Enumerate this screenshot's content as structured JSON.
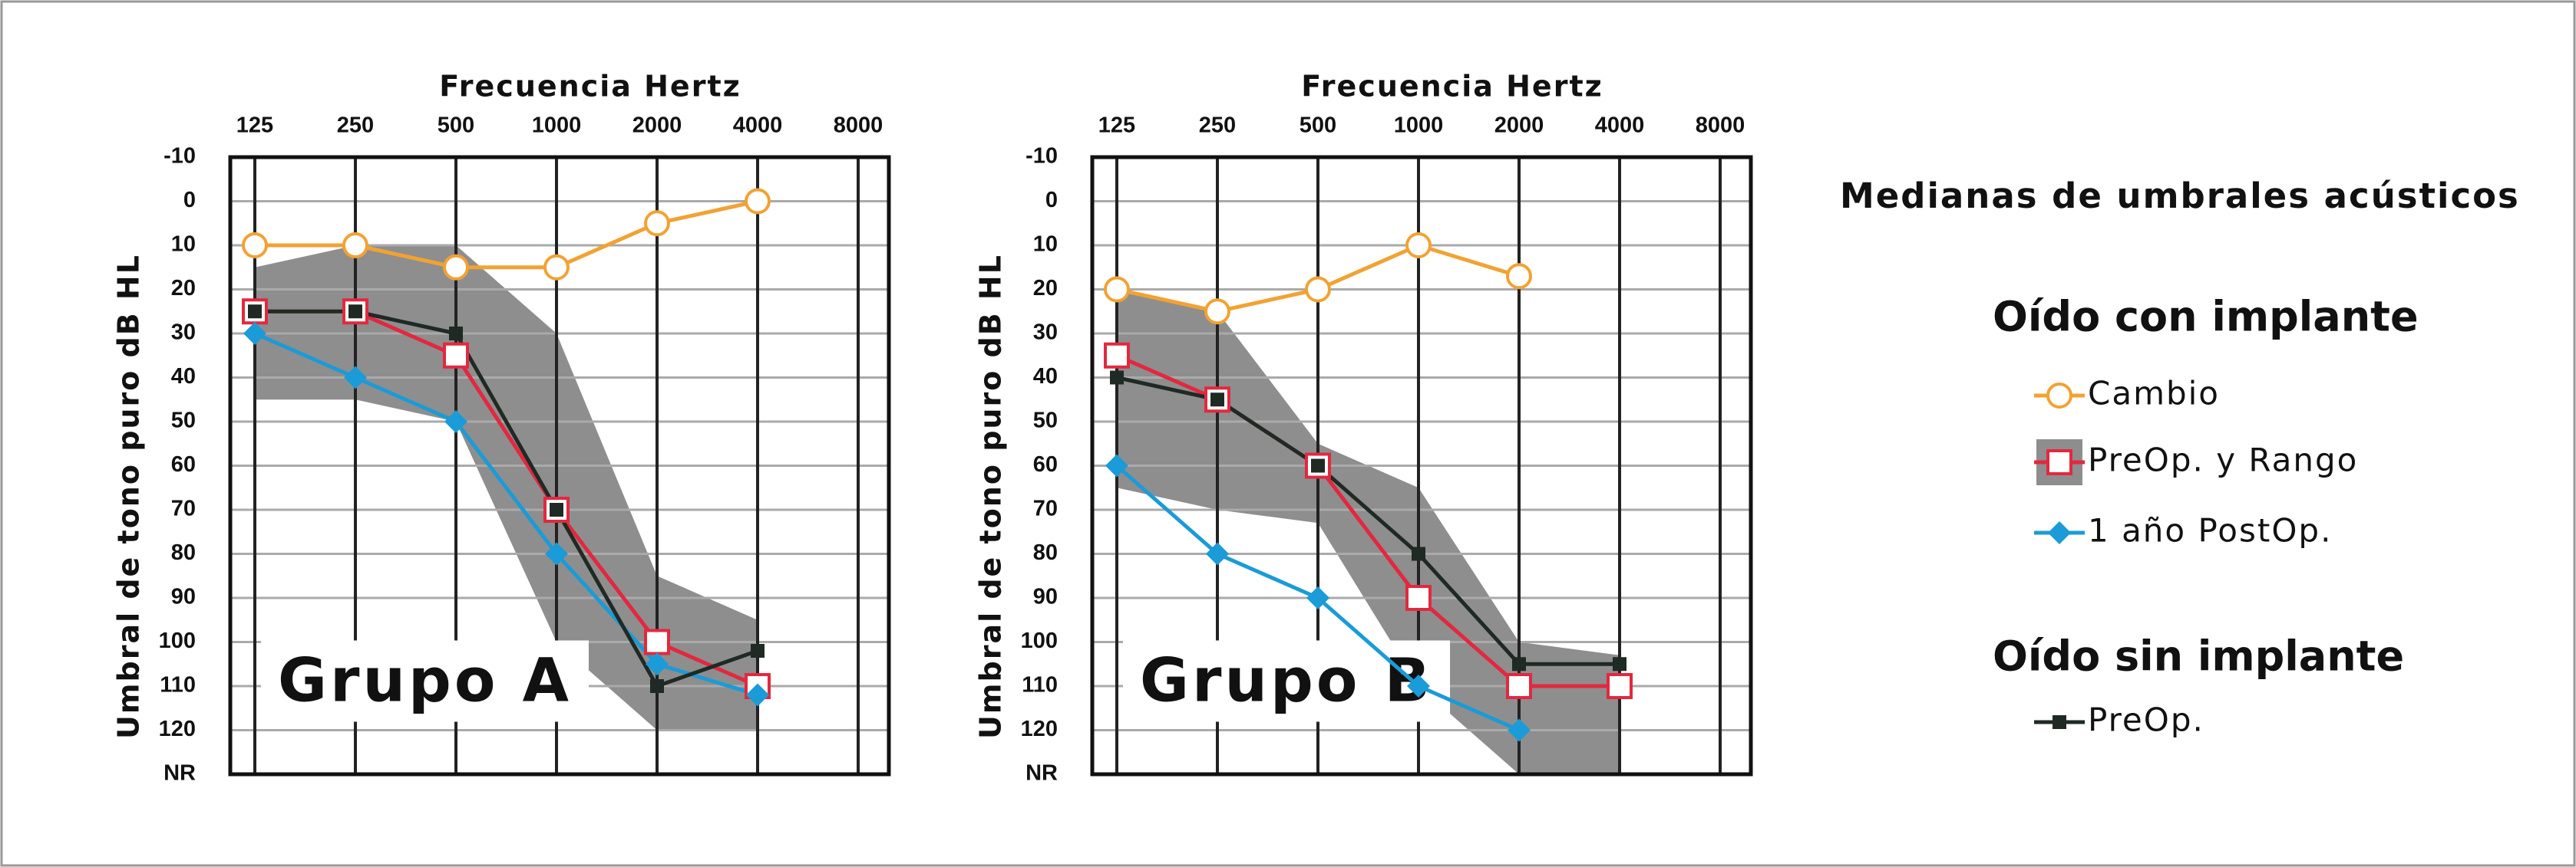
{
  "chart_data": [
    {
      "type": "line",
      "x_label": "Frecuencia Hertz",
      "y_label": "Umbral de tono puro dB HL",
      "annotation": "Grupo A",
      "categories": [
        "125",
        "250",
        "500",
        "1000",
        "2000",
        "4000",
        "8000"
      ],
      "ylim": [
        130,
        -10
      ],
      "yticks": [
        -10,
        0,
        10,
        20,
        30,
        40,
        50,
        60,
        70,
        80,
        90,
        100,
        110,
        120,
        {
          "value": 130,
          "label": "NR"
        }
      ],
      "series": [
        {
          "values": [
            10,
            10,
            15,
            15,
            5,
            0,
            null
          ]
        },
        {
          "values": [
            25,
            25,
            35,
            70,
            100,
            110,
            null
          ],
          "range_min": [
            15,
            10,
            10,
            30,
            85,
            95,
            null
          ],
          "range_max": [
            45,
            45,
            50,
            100,
            120,
            120,
            null
          ]
        },
        {
          "values": [
            30,
            40,
            50,
            80,
            105,
            112,
            null
          ]
        },
        {
          "values": [
            25,
            25,
            30,
            70,
            110,
            102,
            null
          ]
        }
      ]
    },
    {
      "type": "line",
      "x_label": "Frecuencia Hertz",
      "y_label": "Umbral de tono puro dB HL",
      "annotation": "Grupo B",
      "categories": [
        "125",
        "250",
        "500",
        "1000",
        "2000",
        "4000",
        "8000"
      ],
      "ylim": [
        130,
        -10
      ],
      "yticks": [
        -10,
        0,
        10,
        20,
        30,
        40,
        50,
        60,
        70,
        80,
        90,
        100,
        110,
        120,
        {
          "value": 130,
          "label": "NR"
        }
      ],
      "series": [
        {
          "values": [
            20,
            25,
            20,
            10,
            17,
            null,
            null
          ]
        },
        {
          "values": [
            35,
            45,
            60,
            90,
            110,
            110,
            null
          ],
          "range_min": [
            20,
            25,
            55,
            65,
            100,
            103,
            null
          ],
          "range_max": [
            65,
            70,
            73,
            110,
            130,
            130,
            null
          ]
        },
        {
          "values": [
            60,
            80,
            90,
            110,
            120,
            null,
            null
          ]
        },
        {
          "values": [
            40,
            45,
            60,
            80,
            105,
            105,
            null
          ]
        }
      ]
    }
  ],
  "legend": {
    "title": "Medianas de umbrales acústicos",
    "groups": [
      {
        "title": "Oído con implante",
        "entries": [
          {
            "name": "Cambio",
            "color": "#f2a233",
            "marker": "open-circle"
          },
          {
            "name": "PreOp. y Rango",
            "color": "#e3283e",
            "marker": "open-square",
            "range_color": "#8e8e8e"
          },
          {
            "name": "1 año PostOp.",
            "color": "#1b9bd7",
            "marker": "diamond"
          }
        ]
      },
      {
        "title": "Oído sin implante",
        "entries": [
          {
            "name": "PreOp.",
            "color": "#1f2a24",
            "marker": "small-square"
          }
        ]
      }
    ]
  }
}
